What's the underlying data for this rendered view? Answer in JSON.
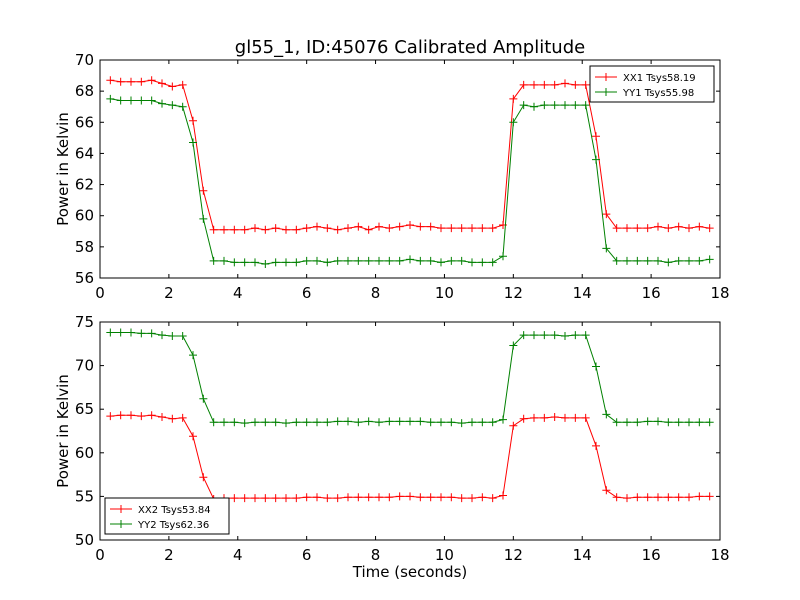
{
  "title": "gl55_1, ID:45076 Calibrated Amplitude",
  "xlabel": "Time (seconds)",
  "colors": {
    "red": "#ff0000",
    "green": "#008000"
  },
  "chart_data": [
    {
      "type": "line",
      "ylabel": "Power in Kelvin",
      "xlim": [
        0,
        18
      ],
      "ylim": [
        56,
        70
      ],
      "xticks": [
        "0",
        "2",
        "4",
        "6",
        "8",
        "10",
        "12",
        "14",
        "16",
        "18"
      ],
      "yticks": [
        "56",
        "58",
        "60",
        "62",
        "64",
        "66",
        "68",
        "70"
      ],
      "legend_position": "top-right",
      "x": [
        0.3,
        0.6,
        0.9,
        1.2,
        1.5,
        1.8,
        2.1,
        2.4,
        2.7,
        3.0,
        3.3,
        3.6,
        3.9,
        4.2,
        4.5,
        4.8,
        5.1,
        5.4,
        5.7,
        6.0,
        6.3,
        6.6,
        6.9,
        7.2,
        7.5,
        7.8,
        8.1,
        8.4,
        8.7,
        9.0,
        9.3,
        9.6,
        9.9,
        10.2,
        10.5,
        10.8,
        11.1,
        11.4,
        11.7,
        12.0,
        12.3,
        12.6,
        12.9,
        13.2,
        13.5,
        13.8,
        14.1,
        14.4,
        14.7,
        15.0,
        15.3,
        15.6,
        15.9,
        16.2,
        16.5,
        16.8,
        17.1,
        17.4,
        17.7
      ],
      "series": [
        {
          "name": "XX1 Tsys58.19",
          "color": "#ff0000",
          "values": [
            68.7,
            68.6,
            68.6,
            68.6,
            68.7,
            68.5,
            68.3,
            68.4,
            66.1,
            61.6,
            59.1,
            59.1,
            59.1,
            59.1,
            59.2,
            59.1,
            59.2,
            59.1,
            59.1,
            59.2,
            59.3,
            59.2,
            59.1,
            59.2,
            59.3,
            59.1,
            59.3,
            59.2,
            59.3,
            59.4,
            59.3,
            59.3,
            59.2,
            59.2,
            59.2,
            59.2,
            59.2,
            59.2,
            59.4,
            67.5,
            68.4,
            68.4,
            68.4,
            68.4,
            68.5,
            68.4,
            68.4,
            65.1,
            60.1,
            59.2,
            59.2,
            59.2,
            59.2,
            59.3,
            59.2,
            59.3,
            59.2,
            59.3,
            59.2
          ]
        },
        {
          "name": "YY1 Tsys55.98",
          "color": "#008000",
          "values": [
            67.5,
            67.4,
            67.4,
            67.4,
            67.4,
            67.2,
            67.1,
            67.0,
            64.7,
            59.8,
            57.1,
            57.1,
            57.0,
            57.0,
            57.0,
            56.9,
            57.0,
            57.0,
            57.0,
            57.1,
            57.1,
            57.0,
            57.1,
            57.1,
            57.1,
            57.1,
            57.1,
            57.1,
            57.1,
            57.2,
            57.1,
            57.1,
            57.0,
            57.1,
            57.1,
            57.0,
            57.0,
            57.0,
            57.4,
            66.0,
            67.1,
            67.0,
            67.1,
            67.1,
            67.1,
            67.1,
            67.1,
            63.6,
            57.9,
            57.1,
            57.1,
            57.1,
            57.1,
            57.1,
            57.0,
            57.1,
            57.1,
            57.1,
            57.2
          ]
        }
      ]
    },
    {
      "type": "line",
      "ylabel": "Power in Kelvin",
      "xlabel": "Time (seconds)",
      "xlim": [
        0,
        18
      ],
      "ylim": [
        50,
        75
      ],
      "xticks": [
        "0",
        "2",
        "4",
        "6",
        "8",
        "10",
        "12",
        "14",
        "16",
        "18"
      ],
      "yticks": [
        "50",
        "55",
        "60",
        "65",
        "70",
        "75"
      ],
      "legend_position": "bottom-left",
      "x": [
        0.3,
        0.6,
        0.9,
        1.2,
        1.5,
        1.8,
        2.1,
        2.4,
        2.7,
        3.0,
        3.3,
        3.6,
        3.9,
        4.2,
        4.5,
        4.8,
        5.1,
        5.4,
        5.7,
        6.0,
        6.3,
        6.6,
        6.9,
        7.2,
        7.5,
        7.8,
        8.1,
        8.4,
        8.7,
        9.0,
        9.3,
        9.6,
        9.9,
        10.2,
        10.5,
        10.8,
        11.1,
        11.4,
        11.7,
        12.0,
        12.3,
        12.6,
        12.9,
        13.2,
        13.5,
        13.8,
        14.1,
        14.4,
        14.7,
        15.0,
        15.3,
        15.6,
        15.9,
        16.2,
        16.5,
        16.8,
        17.1,
        17.4,
        17.7
      ],
      "series": [
        {
          "name": "XX2 Tsys53.84",
          "color": "#ff0000",
          "values": [
            64.2,
            64.3,
            64.3,
            64.2,
            64.3,
            64.1,
            63.9,
            64.0,
            61.9,
            57.2,
            54.7,
            54.8,
            54.8,
            54.8,
            54.8,
            54.8,
            54.8,
            54.8,
            54.8,
            54.9,
            54.9,
            54.8,
            54.8,
            54.9,
            54.9,
            54.9,
            54.9,
            54.9,
            55.0,
            55.0,
            54.9,
            54.9,
            54.9,
            54.9,
            54.8,
            54.8,
            54.9,
            54.8,
            55.1,
            63.1,
            63.9,
            64.0,
            64.0,
            64.1,
            64.0,
            64.0,
            64.0,
            60.8,
            55.7,
            54.9,
            54.8,
            54.9,
            54.9,
            54.9,
            54.9,
            54.9,
            54.9,
            55.0,
            55.0
          ]
        },
        {
          "name": "YY2 Tsys62.36",
          "color": "#008000",
          "values": [
            73.8,
            73.8,
            73.8,
            73.7,
            73.7,
            73.5,
            73.4,
            73.4,
            71.2,
            66.2,
            63.5,
            63.5,
            63.5,
            63.4,
            63.5,
            63.5,
            63.5,
            63.4,
            63.5,
            63.5,
            63.5,
            63.5,
            63.6,
            63.6,
            63.5,
            63.6,
            63.5,
            63.6,
            63.6,
            63.6,
            63.6,
            63.5,
            63.5,
            63.5,
            63.4,
            63.5,
            63.5,
            63.5,
            63.8,
            72.3,
            73.5,
            73.5,
            73.5,
            73.5,
            73.4,
            73.5,
            73.5,
            69.9,
            64.4,
            63.5,
            63.5,
            63.5,
            63.6,
            63.6,
            63.5,
            63.5,
            63.5,
            63.5,
            63.5
          ]
        }
      ]
    }
  ]
}
